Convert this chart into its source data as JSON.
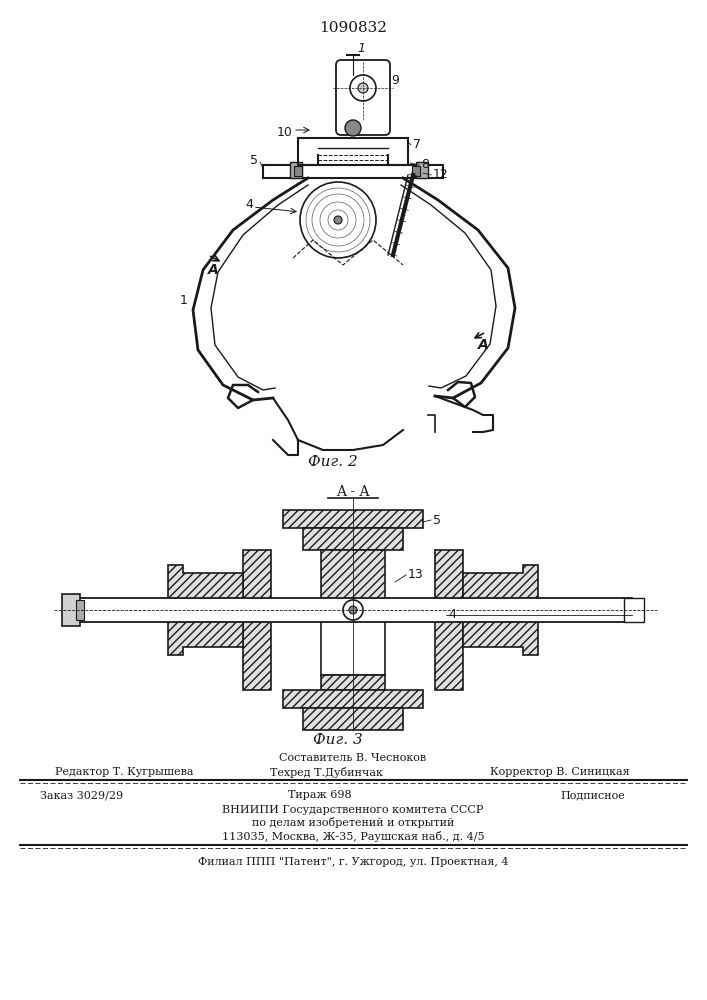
{
  "patent_number": "1090832",
  "fig2_label": "Фиг. 2",
  "fig3_label": "Фиг. 3",
  "staff_line1": "Составитель В. Чесноков",
  "staff_line2_left": "Редактор Т. Кугрышева",
  "staff_line2_mid": "Техред Т.Дубинчак",
  "staff_line2_right": "Корректор В. Синицкая",
  "order_line": "Заказ 3029/29",
  "tirazh_line": "Тираж 698",
  "podpisnoe": "Подписное",
  "vniip_line1": "ВНИИПИ Государственного комитета СССР",
  "vniip_line2": "по делам изобретений и открытий",
  "vniip_line3": "113035, Москва, Ж-35, Раушская наб., д. 4/5",
  "filial_line": "Филиал ППП \"Патент\", г. Ужгород, ул. Проектная, 4",
  "bg_color": "#ffffff",
  "text_color": "#1a1a1a",
  "line_color": "#1a1a1a"
}
